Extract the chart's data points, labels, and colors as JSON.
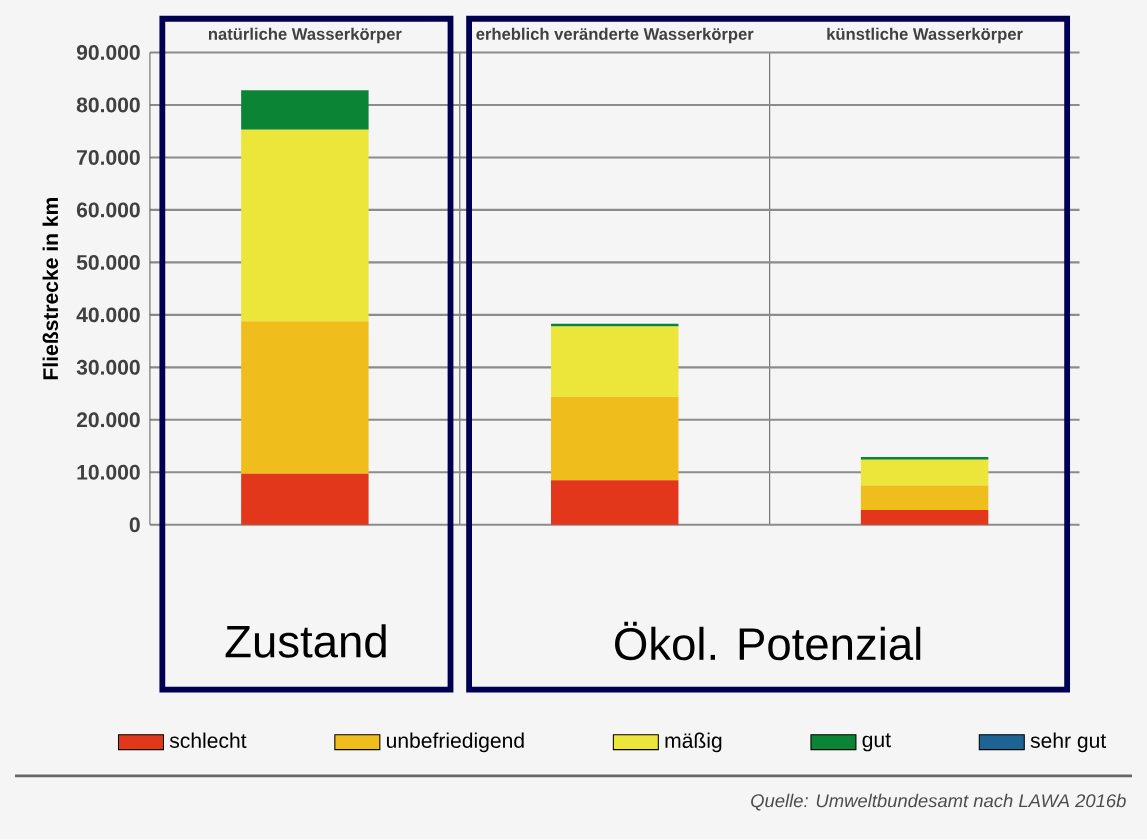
{
  "chart_data": {
    "type": "bar",
    "stacked": true,
    "ylabel": "Fließstrecke in km",
    "categories": [
      "natürliche Wasserkörper",
      "erheblich veränderte Wasserkörper",
      "künstliche Wasserkörper"
    ],
    "series": [
      {
        "name": "schlecht",
        "color": "#e2371b",
        "values": [
          9700,
          8500,
          2800
        ]
      },
      {
        "name": "unbefriedigend",
        "color": "#f0be1c",
        "values": [
          29100,
          15900,
          4700
        ]
      },
      {
        "name": "mäßig",
        "color": "#ece63a",
        "values": [
          36500,
          13400,
          4900
        ]
      },
      {
        "name": "gut",
        "color": "#0b8535",
        "values": [
          7500,
          500,
          500
        ]
      },
      {
        "name": "sehr gut",
        "color": "#1d6393",
        "values": [
          0,
          0,
          0
        ]
      }
    ],
    "ylim": [
      0,
      90000
    ],
    "yticks": [
      0,
      {
        "value": 10000,
        "label": "10.000"
      },
      {
        "value": 20000,
        "label": "20.000"
      },
      {
        "value": 30000,
        "label": "30.000"
      },
      {
        "value": 40000,
        "label": "40.000"
      },
      {
        "value": 50000,
        "label": "50.000"
      },
      {
        "value": 60000,
        "label": "60.000"
      },
      {
        "value": 70000,
        "label": "70.000"
      },
      {
        "value": 80000,
        "label": "80.000"
      },
      {
        "value": 90000,
        "label": "90.000"
      }
    ],
    "grid": "y",
    "legend": "bottom",
    "annotations": [
      "Zustand",
      "Ökol. Potenzial",
      "Quelle: Umweltbundesamt nach LAWA 2016b"
    ]
  }
}
